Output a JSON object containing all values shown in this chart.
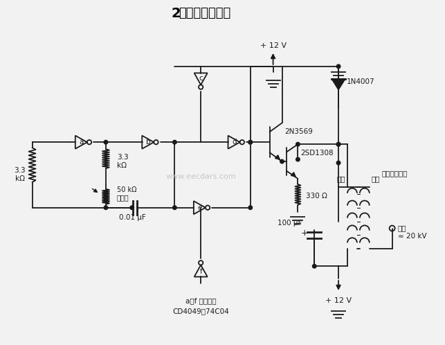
{
  "bg_color": "#f2f2f2",
  "line_color": "#1a1a1a",
  "text_color": "#1a1a1a",
  "title_2": "2",
  "title_rest": "万伏高压发生器",
  "label_a": "a",
  "label_b": "b",
  "label_c": "c",
  "label_d": "d",
  "label_e": "e",
  "label_f": "f",
  "r1_label": "3.3\nkΩ",
  "r2_label": "3.3\nkΩ",
  "r3_label": "50 kΩ\n电位器",
  "r4_label": "330 Ω",
  "c1_label": "0.01 μF",
  "c2_label": "100 μF",
  "t1_label": "2N3569",
  "t2_label": "2SD1308",
  "d1_label": "1N4007",
  "vcc1": "+ 12 V",
  "vcc2": "+ 12 V",
  "coil_pri": "初级",
  "coil_sec": "次级",
  "coil_name": "自动点火线圈",
  "out_label": "输出",
  "out_val": "≈ 20 kV",
  "note1": "a－f 六部分为",
  "note2": "CD4049或74C04",
  "watermark": "www.eecdars.com"
}
